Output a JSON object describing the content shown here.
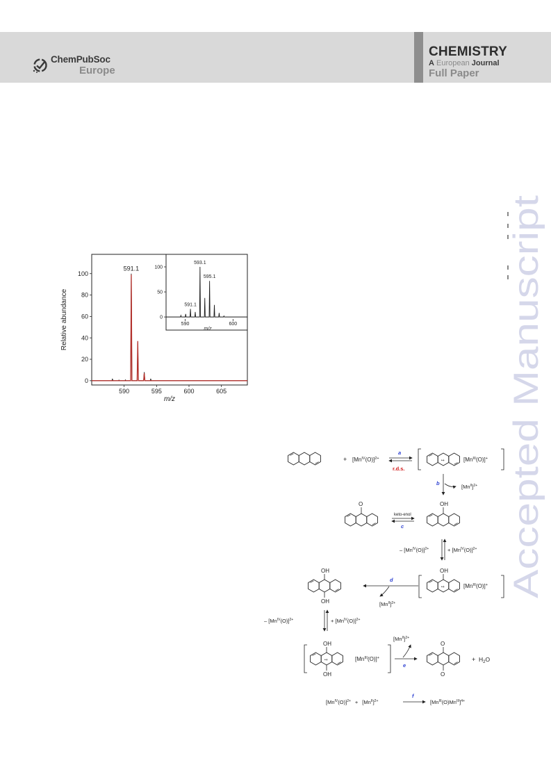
{
  "header": {
    "logo": {
      "name": "ChemPubSoc",
      "region": "Europe"
    },
    "journal": {
      "title": "CHEMISTRY",
      "line2_a": "A",
      "line2_european": "European",
      "line2_journal": "Journal",
      "article_type": "Full Paper"
    }
  },
  "watermark": "Accepted Manuscript",
  "chart_data": [
    {
      "type": "line",
      "xlabel": "m/z",
      "ylabel": "Relative abundance",
      "xlim": [
        585,
        609
      ],
      "ylim": [
        -4,
        118
      ],
      "xticks": [
        590,
        595,
        600,
        605
      ],
      "yticks": [
        0,
        20,
        40,
        60,
        80,
        100
      ],
      "annotations": [
        {
          "label": "591.1",
          "x": 591.1,
          "y": 100
        }
      ],
      "series": [
        {
          "color": "#1a1a1a",
          "peaks": [
            {
              "x": 588.2,
              "y": 1.5
            },
            {
              "x": 589.2,
              "y": 0.6
            },
            {
              "x": 590.2,
              "y": 0.8
            },
            {
              "x": 591.1,
              "y": 100
            },
            {
              "x": 592.1,
              "y": 35
            },
            {
              "x": 593.1,
              "y": 8
            },
            {
              "x": 594.1,
              "y": 1.5
            }
          ]
        },
        {
          "color": "#b3312c",
          "peaks": [
            {
              "x": 591.1,
              "y": 99
            },
            {
              "x": 592.1,
              "y": 37
            },
            {
              "x": 593.1,
              "y": 7
            }
          ]
        }
      ]
    },
    {
      "type": "line",
      "xlabel": "m/z",
      "xlim": [
        586,
        603
      ],
      "ylim": [
        -4,
        125
      ],
      "xticks": [
        590,
        600
      ],
      "yticks": [
        0,
        50,
        100
      ],
      "annotations": [
        {
          "label": "591.1",
          "x": 591.1,
          "y": 16
        },
        {
          "label": "593.1",
          "x": 593.1,
          "y": 100
        },
        {
          "label": "595.1",
          "x": 595.1,
          "y": 72
        }
      ],
      "series": [
        {
          "color": "#1a1a1a",
          "peaks": [
            {
              "x": 589.1,
              "y": 3
            },
            {
              "x": 590.1,
              "y": 6
            },
            {
              "x": 591.1,
              "y": 16
            },
            {
              "x": 592.1,
              "y": 10
            },
            {
              "x": 593.1,
              "y": 100
            },
            {
              "x": 594.1,
              "y": 38
            },
            {
              "x": 595.1,
              "y": 72
            },
            {
              "x": 596.1,
              "y": 24
            },
            {
              "x": 597.1,
              "y": 8
            },
            {
              "x": 598.1,
              "y": 2
            }
          ]
        }
      ]
    }
  ],
  "scheme": {
    "step_a": "a",
    "rds": "r.d.s.",
    "step_b": "b",
    "step_c": "c",
    "step_d": "d",
    "step_e": "e",
    "step_f": "f",
    "keto_enol": "keto-enol",
    "plus": "+",
    "water": "H",
    "water_sub": "2",
    "water_o": "O",
    "oh": "OH",
    "o": "O",
    "radical": "•+",
    "mn": "Mn",
    "ox_iv": "IV",
    "ox_iii": "III",
    "ox_ii": "II",
    "charge_2p": "2+",
    "charge_p": "+",
    "charge_4p": "4+",
    "minus": "–",
    "o_paren": "(O)",
    "bracket_open": "[",
    "bracket_close": "]"
  }
}
